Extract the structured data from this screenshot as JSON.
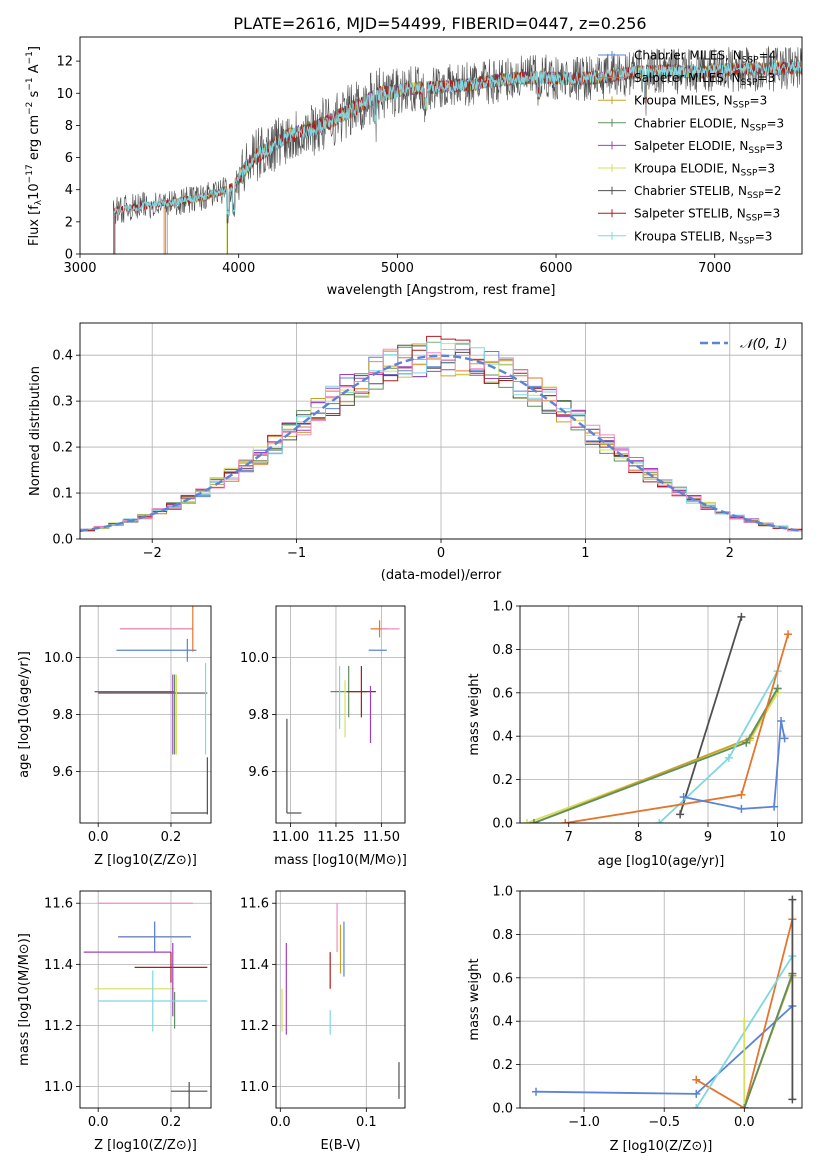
{
  "figure": {
    "title": "PLATE=2616, MJD=54499, FIBERID=0447, z=0.256"
  },
  "colors": {
    "ChabrierMILES": "#5b84d6",
    "SalpeterMILES": "#e3762c",
    "KroupaMILES": "#c9a227",
    "ChabrierELODIE": "#5f8f5f",
    "SalpeterELODIE": "#a040c0",
    "KroupaELODIE": "#d4e060",
    "ChabrierSTELIB": "#505050",
    "SalpeterSTELIB": "#b01c1c",
    "KroupaSTELIB": "#7fd8e0",
    "pink": "#f28cc4",
    "grid": "#b0b0b0"
  },
  "chart_data": [
    {
      "id": "spectrum",
      "type": "line",
      "title": "PLATE=2616, MJD=54499, FIBERID=0447, z=0.256",
      "xlabel": "wavelength [Angstrom, rest frame]",
      "ylabel": "Flux [f_λ 10^-17 erg cm^-2 s^-1 A^-1]",
      "xlim": [
        3000,
        7550
      ],
      "ylim": [
        0,
        13.5
      ],
      "xticks": [
        "3000",
        "4000",
        "5000",
        "6000",
        "7000"
      ],
      "yticks": [
        "0",
        "2",
        "4",
        "6",
        "8",
        "10",
        "12"
      ],
      "grid": false,
      "legend_position": "top-right",
      "legend": [
        "Chabrier MILES, N_SSP=4",
        "Salpeter MILES, N_SSP=3",
        "Kroupa MILES, N_SSP=3",
        "Chabrier ELODIE, N_SSP=3",
        "Salpeter ELODIE, N_SSP=3",
        "Kroupa ELODIE, N_SSP=3",
        "Chabrier STELIB, N_SSP=2",
        "Salpeter STELIB, N_SSP=3",
        "Kroupa STELIB, N_SSP=3"
      ],
      "continuum": [
        [
          3210,
          2.7
        ],
        [
          3400,
          3.0
        ],
        [
          3600,
          3.2
        ],
        [
          3800,
          3.6
        ],
        [
          3950,
          4.1
        ],
        [
          4100,
          6.0
        ],
        [
          4300,
          7.3
        ],
        [
          4500,
          7.9
        ],
        [
          4700,
          8.9
        ],
        [
          4900,
          10.0
        ],
        [
          5100,
          10.3
        ],
        [
          5300,
          10.4
        ],
        [
          5500,
          10.6
        ],
        [
          5700,
          10.9
        ],
        [
          5900,
          11.0
        ],
        [
          6100,
          10.9
        ],
        [
          6300,
          11.0
        ],
        [
          6500,
          11.3
        ],
        [
          6700,
          11.4
        ],
        [
          6900,
          11.3
        ],
        [
          7100,
          11.5
        ],
        [
          7300,
          11.5
        ],
        [
          7550,
          11.6
        ]
      ],
      "series_starts": {
        "ChabrierMILES": 3540,
        "SalpeterMILES": 3530,
        "KroupaMILES": 3550,
        "ChabrierELODIE": 3930,
        "SalpeterELODIE": 3930,
        "KroupaELODIE": 3925,
        "ChabrierSTELIB": 3210,
        "SalpeterSTELIB": 3220,
        "KroupaSTELIB": 3215
      }
    },
    {
      "id": "residual_hist",
      "type": "histogram",
      "xlabel": "(data-model)/error",
      "ylabel": "Normed distribution",
      "xlim": [
        -2.5,
        2.5
      ],
      "ylim": [
        0,
        0.47
      ],
      "xticks": [
        "−2",
        "−1",
        "0",
        "1",
        "2"
      ],
      "yticks": [
        "0.0",
        "0.1",
        "0.2",
        "0.3",
        "0.4"
      ],
      "grid": true,
      "legend_position": "top-right",
      "legend": [
        "N(0,1)"
      ],
      "bin_width": 0.1,
      "reference": "normal(0,1)"
    },
    {
      "id": "age_vs_Z",
      "type": "errorbar",
      "xlabel": "Z [log10(Z/Z⊙)]",
      "ylabel": "age [log10(age/yr)]",
      "xlim": [
        -0.05,
        0.31
      ],
      "ylim": [
        9.42,
        10.18
      ],
      "xticks": [
        "0.0",
        "0.2"
      ],
      "yticks": [
        "9.6",
        "9.8",
        "10.0"
      ],
      "grid": true,
      "points": [
        {
          "s": "SalpeterMILES",
          "x": 0.16,
          "xerr": [
            0.1,
            0.1
          ],
          "y": 10.1,
          "yerr": [
            0,
            0
          ]
        },
        {
          "s": "pink",
          "x": 0.16,
          "xerr": [
            0.1,
            0.1
          ],
          "y": 10.1,
          "yerr": [
            0,
            0
          ]
        },
        {
          "s": "ChabrierMILES",
          "x": 0.16,
          "xerr": [
            0.11,
            0.11
          ],
          "y": 10.025,
          "yerr": [
            0,
            0
          ]
        },
        {
          "s": "KroupaMILES",
          "x": 0.1,
          "xerr": [
            0.1,
            0.1
          ],
          "y": 9.88,
          "yerr": [
            0,
            0
          ]
        },
        {
          "s": "KroupaELODIE",
          "x": 0.1,
          "xerr": [
            0.11,
            0.11
          ],
          "y": 9.88,
          "yerr": [
            0,
            0
          ]
        },
        {
          "s": "ChabrierELODIE",
          "x": 0.1,
          "xerr": [
            0.11,
            0.11
          ],
          "y": 9.88,
          "yerr": [
            0,
            0
          ]
        },
        {
          "s": "SalpeterELODIE",
          "x": 0.1,
          "xerr": [
            0.11,
            0.11
          ],
          "y": 9.88,
          "yerr": [
            0,
            0
          ]
        },
        {
          "s": "ChabrierSTELIB",
          "x": 0.15,
          "xerr": [
            0.15,
            0.15
          ],
          "y": 9.875,
          "yerr": [
            0,
            0
          ]
        },
        {
          "s": "ChabrierSTELIB",
          "x": 0.25,
          "xerr": [
            0.05,
            0.05
          ],
          "y": 9.455,
          "yerr": [
            0,
            0
          ]
        },
        {
          "s": "SalpeterMILES",
          "x": 0.26,
          "xerr": [
            0,
            0
          ],
          "y": 10.1,
          "yerr": [
            0.08,
            0.08
          ]
        },
        {
          "s": "ChabrierMILES",
          "x": 0.245,
          "xerr": [
            0,
            0
          ],
          "y": 10.025,
          "yerr": [
            0.04,
            0.04
          ]
        },
        {
          "s": "ChabrierELODIE",
          "x": 0.21,
          "xerr": [
            0,
            0
          ],
          "y": 9.8,
          "yerr": [
            0.14,
            0.14
          ]
        },
        {
          "s": "KroupaELODIE",
          "x": 0.215,
          "xerr": [
            0,
            0
          ],
          "y": 9.8,
          "yerr": [
            0.14,
            0.14
          ]
        },
        {
          "s": "SalpeterELODIE",
          "x": 0.205,
          "xerr": [
            0,
            0
          ],
          "y": 9.8,
          "yerr": [
            0.14,
            0.14
          ]
        },
        {
          "s": "KroupaSTELIB",
          "x": 0.295,
          "xerr": [
            0,
            0
          ],
          "y": 9.82,
          "yerr": [
            0.16,
            0.16
          ]
        },
        {
          "s": "ChabrierSTELIB",
          "x": 0.3,
          "xerr": [
            0,
            0
          ],
          "y": 9.55,
          "yerr": [
            0.1,
            0.1
          ]
        }
      ]
    },
    {
      "id": "age_vs_mass",
      "type": "errorbar",
      "xlabel": "mass [log10(M/M⊙)]",
      "ylabel": "",
      "xlim": [
        10.92,
        11.63
      ],
      "ylim": [
        9.42,
        10.18
      ],
      "xticks": [
        "11.00",
        "11.25",
        "11.50"
      ],
      "yticks": [
        "9.6",
        "9.8",
        "10.0"
      ],
      "grid": true,
      "points": [
        {
          "s": "SalpeterMILES",
          "x": 11.49,
          "xerr": [
            0.05,
            0.05
          ],
          "y": 10.1,
          "yerr": [
            0.03,
            0.03
          ]
        },
        {
          "s": "pink",
          "x": 11.55,
          "xerr": [
            0.05,
            0.05
          ],
          "y": 10.1,
          "yerr": [
            0,
            0
          ]
        },
        {
          "s": "ChabrierMILES",
          "x": 11.48,
          "xerr": [
            0.05,
            0.05
          ],
          "y": 10.025,
          "yerr": [
            0,
            0
          ]
        },
        {
          "s": "ChabrierELODIE",
          "x": 11.32,
          "xerr": [
            0.1,
            0.1
          ],
          "y": 9.88,
          "yerr": [
            0.09,
            0.09
          ]
        },
        {
          "s": "KroupaELODIE",
          "x": 11.3,
          "xerr": [
            0,
            0
          ],
          "y": 9.82,
          "yerr": [
            0.1,
            0.1
          ]
        },
        {
          "s": "KroupaSTELIB",
          "x": 11.27,
          "xerr": [
            0,
            0
          ],
          "y": 9.86,
          "yerr": [
            0.11,
            0.11
          ]
        },
        {
          "s": "SalpeterSTELIB",
          "x": 11.39,
          "xerr": [
            0.08,
            0.08
          ],
          "y": 9.88,
          "yerr": [
            0.09,
            0.09
          ]
        },
        {
          "s": "SalpeterELODIE",
          "x": 11.44,
          "xerr": [
            0,
            0
          ],
          "y": 9.8,
          "yerr": [
            0.1,
            0.1
          ]
        },
        {
          "s": "ChabrierSTELIB",
          "x": 10.98,
          "xerr": [
            0,
            0.08
          ],
          "y": 9.455,
          "yerr": [
            0,
            0.33
          ]
        }
      ]
    },
    {
      "id": "massweight_vs_age",
      "type": "line",
      "xlabel": "age [log10(age/yr)]",
      "ylabel": "mass weight",
      "xlim": [
        6.3,
        10.35
      ],
      "ylim": [
        0,
        1
      ],
      "xticks": [
        "7",
        "8",
        "9",
        "10"
      ],
      "yticks": [
        "0.0",
        "0.2",
        "0.4",
        "0.6",
        "0.8",
        "1.0"
      ],
      "grid": true,
      "series": [
        {
          "s": "ChabrierSTELIB",
          "x": [
            8.6,
            9.48
          ],
          "y": [
            0.04,
            0.95
          ]
        },
        {
          "s": "KroupaELODIE",
          "x": [
            6.4,
            9.6,
            10.0
          ],
          "y": [
            0.0,
            0.38,
            0.6
          ]
        },
        {
          "s": "KroupaMILES",
          "x": [
            6.5,
            9.6,
            10.0
          ],
          "y": [
            0.0,
            0.39,
            0.62
          ]
        },
        {
          "s": "ChabrierELODIE",
          "x": [
            6.5,
            9.55,
            10.0
          ],
          "y": [
            0.0,
            0.37,
            0.62
          ]
        },
        {
          "s": "KroupaSTELIB",
          "x": [
            8.3,
            9.3,
            10.0
          ],
          "y": [
            0.0,
            0.3,
            0.7
          ]
        },
        {
          "s": "SalpeterMILES",
          "x": [
            6.95,
            9.48,
            10.15
          ],
          "y": [
            0.0,
            0.13,
            0.87
          ]
        },
        {
          "s": "ChabrierMILES",
          "x": [
            8.65,
            9.48,
            9.95,
            10.05,
            10.1
          ],
          "y": [
            0.12,
            0.065,
            0.075,
            0.47,
            0.39
          ]
        }
      ]
    },
    {
      "id": "mass_vs_Z",
      "type": "errorbar",
      "xlabel": "Z [log10(Z/Z⊙)]",
      "ylabel": "mass [log10(M/M⊙)]",
      "xlim": [
        -0.05,
        0.31
      ],
      "ylim": [
        10.93,
        11.64
      ],
      "xticks": [
        "0.0",
        "0.2"
      ],
      "yticks": [
        "11.0",
        "11.2",
        "11.4",
        "11.6"
      ],
      "grid": true,
      "points": [
        {
          "s": "pink",
          "x": 0.13,
          "xerr": [
            0.13,
            0.13
          ],
          "y": 11.6,
          "yerr": [
            0,
            0
          ]
        },
        {
          "s": "SalpeterMILES",
          "x": 0.155,
          "xerr": [
            0.1,
            0.1
          ],
          "y": 11.49,
          "yerr": [
            0.05,
            0.05
          ]
        },
        {
          "s": "ChabrierMILES",
          "x": 0.155,
          "xerr": [
            0.1,
            0.1
          ],
          "y": 11.49,
          "yerr": [
            0.05,
            0.05
          ]
        },
        {
          "s": "SalpeterELODIE",
          "x": 0.08,
          "xerr": [
            0.12,
            0.12
          ],
          "y": 11.44,
          "yerr": [
            0,
            0
          ]
        },
        {
          "s": "SalpeterSTELIB",
          "x": 0.2,
          "xerr": [
            0.1,
            0.1
          ],
          "y": 11.39,
          "yerr": [
            0.05,
            0.05
          ]
        },
        {
          "s": "KroupaELODIE",
          "x": 0.1,
          "xerr": [
            0.11,
            0.11
          ],
          "y": 11.32,
          "yerr": [
            0,
            0
          ]
        },
        {
          "s": "ChabrierELODIE",
          "x": 0.21,
          "xerr": [
            0,
            0
          ],
          "y": 11.25,
          "yerr": [
            0.06,
            0.06
          ]
        },
        {
          "s": "SalpeterELODIE",
          "x": 0.205,
          "xerr": [
            0,
            0
          ],
          "y": 11.35,
          "yerr": [
            0.12,
            0.12
          ]
        },
        {
          "s": "KroupaSTELIB",
          "x": 0.15,
          "xerr": [
            0.15,
            0.15
          ],
          "y": 11.28,
          "yerr": [
            0.1,
            0.1
          ]
        },
        {
          "s": "ChabrierSTELIB",
          "x": 0.25,
          "xerr": [
            0.05,
            0.05
          ],
          "y": 10.985,
          "yerr": [
            0.1,
            0.03
          ]
        }
      ]
    },
    {
      "id": "mass_vs_ebv",
      "type": "errorbar",
      "xlabel": "E(B-V)",
      "ylabel": "",
      "xlim": [
        -0.005,
        0.145
      ],
      "ylim": [
        10.93,
        11.64
      ],
      "xticks": [
        "0.0",
        "0.1"
      ],
      "yticks": [
        "11.0",
        "11.2",
        "11.4",
        "11.6"
      ],
      "grid": true,
      "points": [
        {
          "s": "pink",
          "x": 0.066,
          "xerr": [
            0,
            0
          ],
          "y": 11.52,
          "yerr": [
            0.08,
            0.08
          ]
        },
        {
          "s": "KroupaMILES",
          "x": 0.07,
          "xerr": [
            0,
            0
          ],
          "y": 11.45,
          "yerr": [
            0.08,
            0.08
          ]
        },
        {
          "s": "ChabrierMILES",
          "x": 0.074,
          "xerr": [
            0,
            0
          ],
          "y": 11.45,
          "yerr": [
            0.09,
            0.09
          ]
        },
        {
          "s": "SalpeterSTELIB",
          "x": 0.058,
          "xerr": [
            0,
            0
          ],
          "y": 11.38,
          "yerr": [
            0.06,
            0.06
          ]
        },
        {
          "s": "SalpeterELODIE",
          "x": 0.007,
          "xerr": [
            0,
            0
          ],
          "y": 11.32,
          "yerr": [
            0.15,
            0.15
          ]
        },
        {
          "s": "KroupaELODIE",
          "x": 0.002,
          "xerr": [
            0,
            0
          ],
          "y": 11.25,
          "yerr": [
            0.07,
            0.07
          ]
        },
        {
          "s": "KroupaSTELIB",
          "x": 0.058,
          "xerr": [
            0,
            0
          ],
          "y": 11.21,
          "yerr": [
            0.04,
            0.04
          ]
        },
        {
          "s": "ChabrierSTELIB",
          "x": 0.138,
          "xerr": [
            0,
            0
          ],
          "y": 11.02,
          "yerr": [
            0.06,
            0.06
          ]
        }
      ]
    },
    {
      "id": "massweight_vs_Z",
      "type": "line",
      "xlabel": "Z [log10(Z/Z⊙)]",
      "ylabel": "mass weight",
      "xlim": [
        -1.4,
        0.36
      ],
      "ylim": [
        0,
        1
      ],
      "xticks": [
        "−1.0",
        "−0.5",
        "0.0"
      ],
      "yticks": [
        "0.0",
        "0.2",
        "0.4",
        "0.6",
        "0.8",
        "1.0"
      ],
      "grid": true,
      "series": [
        {
          "s": "ChabrierMILES",
          "x": [
            -1.3,
            -0.3,
            0.3
          ],
          "y": [
            0.075,
            0.065,
            0.47
          ]
        },
        {
          "s": "SalpeterMILES",
          "x": [
            -0.3,
            0.0,
            0.3
          ],
          "y": [
            0.13,
            0.0,
            0.87
          ]
        },
        {
          "s": "KroupaSTELIB",
          "x": [
            -0.3,
            0.3
          ],
          "y": [
            0.0,
            0.7
          ]
        },
        {
          "s": "KroupaELODIE",
          "x": [
            0.0,
            0.0,
            0.3
          ],
          "y": [
            0.4,
            0.0,
            0.61
          ]
        },
        {
          "s": "KroupaMILES",
          "x": [
            0.0,
            0.3
          ],
          "y": [
            0.0,
            0.61
          ]
        },
        {
          "s": "ChabrierELODIE",
          "x": [
            0.0,
            0.3
          ],
          "y": [
            0.0,
            0.62
          ]
        },
        {
          "s": "ChabrierSTELIB",
          "x": [
            0.3,
            0.3
          ],
          "y": [
            0.04,
            0.96
          ]
        }
      ]
    }
  ]
}
